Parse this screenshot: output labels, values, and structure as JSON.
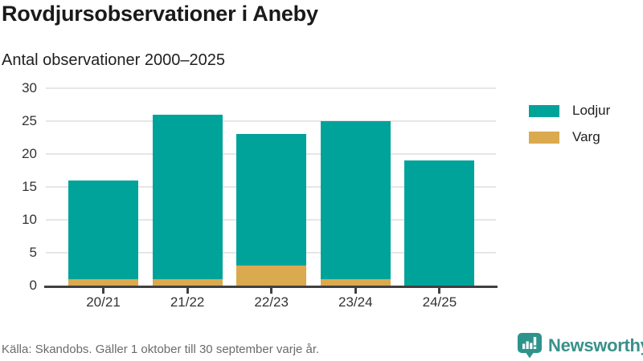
{
  "header": {
    "title": "Rovdjursobservationer i Aneby",
    "subtitle": "Antal observationer 2000–2025"
  },
  "chart_data": {
    "type": "bar",
    "stacked": true,
    "title": "Rovdjursobservationer i Aneby",
    "subtitle": "Antal observationer 2000–2025",
    "categories": [
      "20/21",
      "21/22",
      "22/23",
      "23/24",
      "24/25"
    ],
    "series": [
      {
        "name": "Lodjur",
        "color": "#00a39a",
        "values": [
          15,
          25,
          20,
          24,
          19
        ]
      },
      {
        "name": "Varg",
        "color": "#dba94e",
        "values": [
          1,
          1,
          3,
          1,
          0
        ]
      }
    ],
    "stack_bottom_to_top": [
      "Varg",
      "Lodjur"
    ],
    "totals": [
      16,
      26,
      23,
      25,
      19
    ],
    "yticks": [
      0,
      5,
      10,
      15,
      20,
      25,
      30
    ],
    "ylim": [
      0,
      30
    ],
    "xlabel": "",
    "ylabel": "",
    "grid": "horizontal",
    "legend_position": "right",
    "colors": {
      "gridline": "#e6e6e6",
      "axis_line": "#404040",
      "tick_text": "#333333"
    }
  },
  "footer": {
    "source": "Källa: Skandobs. Gäller 1 oktober till 30 september varje år."
  },
  "branding": {
    "name": "Newsworthy",
    "logo_icon": "bar-chart-speech-bubble-icon",
    "color": "#39908a"
  }
}
